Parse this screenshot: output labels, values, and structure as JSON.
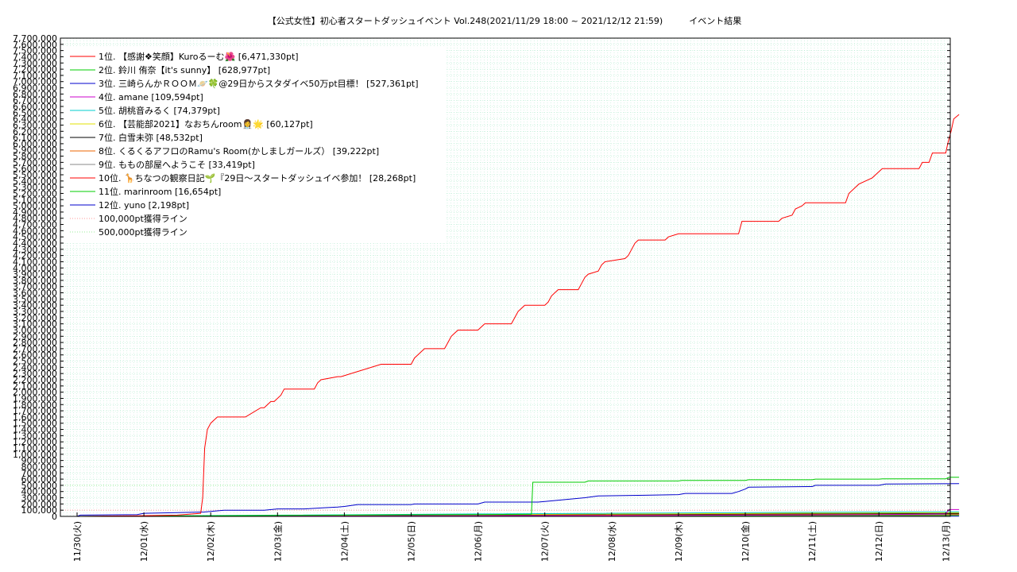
{
  "chart_data": {
    "type": "line",
    "title": "【公式女性】初心者スタートダッシュイベント Vol.248(2021/11/29 18:00 ~ 2021/12/12 21:59)　　　イベント結果",
    "xlabel": "",
    "ylabel": "",
    "ylim": [
      0,
      7700000
    ],
    "y_ticks": [
      "0",
      "100,000",
      "200,000",
      "300,000",
      "400,000",
      "500,000",
      "600,000",
      "700,000",
      "800,000",
      "900,000",
      "1,000,000",
      "1,100,000",
      "1,200,000",
      "1,300,000",
      "1,400,000",
      "1,500,000",
      "1,600,000",
      "1,700,000",
      "1,800,000",
      "1,900,000",
      "2,000,000",
      "2,100,000",
      "2,200,000",
      "2,300,000",
      "2,400,000",
      "2,500,000",
      "2,600,000",
      "2,700,000",
      "2,800,000",
      "2,900,000",
      "3,000,000",
      "3,100,000",
      "3,200,000",
      "3,300,000",
      "3,400,000",
      "3,500,000",
      "3,600,000",
      "3,700,000",
      "3,800,000",
      "3,900,000",
      "4,000,000",
      "4,100,000",
      "4,200,000",
      "4,300,000",
      "4,400,000",
      "4,500,000",
      "4,600,000",
      "4,700,000",
      "4,800,000",
      "4,900,000",
      "5,000,000",
      "5,100,000",
      "5,200,000",
      "5,300,000",
      "5,400,000",
      "5,500,000",
      "5,600,000",
      "5,700,000",
      "5,800,000",
      "5,900,000",
      "6,000,000",
      "6,100,000",
      "6,200,000",
      "6,300,000",
      "6,400,000",
      "6,500,000",
      "6,600,000",
      "6,700,000",
      "6,800,000",
      "6,900,000",
      "7,000,000",
      "7,100,000",
      "7,200,000",
      "7,300,000",
      "7,400,000",
      "7,500,000",
      "7,600,000",
      "7,700,000"
    ],
    "x_labels": [
      "11/30(火)",
      "12/01(水)",
      "12/02(木)",
      "12/03(金)",
      "12/04(土)",
      "12/05(日)",
      "12/06(月)",
      "12/07(火)",
      "12/08(水)",
      "12/09(木)",
      "12/10(金)",
      "12/11(土)",
      "12/12(日)",
      "12/13(月)"
    ],
    "xlim": [
      0,
      13
    ],
    "grid": true,
    "legend_position": "top-left",
    "series": [
      {
        "name": "1位. 【感謝❖笑顔】Kuroるーむ🌺 [6,471,330pt]",
        "color": "#ff0000",
        "x": [
          0,
          0.9,
          1.5,
          1.85,
          1.88,
          1.91,
          1.95,
          2.0,
          2.05,
          2.1,
          2.5,
          2.52,
          2.75,
          2.8,
          2.9,
          2.95,
          3.05,
          3.1,
          3.5,
          3.55,
          3.6,
          3.65,
          3.9,
          3.95,
          4.55,
          4.6,
          4.7,
          4.75,
          5.0,
          5.05,
          5.1,
          5.15,
          5.2,
          5.5,
          5.55,
          5.6,
          5.65,
          5.7,
          6.0,
          6.05,
          6.1,
          6.15,
          6.2,
          6.5,
          6.55,
          6.6,
          6.65,
          6.7,
          7.0,
          7.05,
          7.1,
          7.15,
          7.2,
          7.5,
          7.55,
          7.6,
          7.65,
          7.8,
          7.85,
          7.9,
          8.2,
          8.25,
          8.3,
          8.35,
          8.4,
          8.8,
          8.85,
          9.0,
          9.9,
          9.95,
          10.5,
          10.55,
          10.7,
          10.75,
          10.85,
          10.9,
          11.5,
          11.55,
          11.65,
          11.7,
          11.9,
          11.95,
          12.0,
          12.05,
          12.6,
          12.65,
          12.75,
          12.8,
          13.0,
          13.03,
          13.08,
          13.12,
          13.2
        ],
        "y": [
          0,
          10000,
          20000,
          50000,
          300000,
          1100000,
          1400000,
          1500000,
          1550000,
          1600000,
          1600000,
          1600000,
          1750000,
          1750000,
          1850000,
          1850000,
          1950000,
          2050000,
          2050000,
          2050000,
          2150000,
          2200000,
          2250000,
          2250000,
          2450000,
          2450000,
          2450000,
          2450000,
          2450000,
          2550000,
          2600000,
          2650000,
          2700000,
          2700000,
          2800000,
          2900000,
          2950000,
          3000000,
          3000000,
          3050000,
          3100000,
          3100000,
          3100000,
          3100000,
          3200000,
          3300000,
          3350000,
          3400000,
          3400000,
          3450000,
          3550000,
          3600000,
          3650000,
          3650000,
          3750000,
          3850000,
          3900000,
          3950000,
          4050000,
          4100000,
          4150000,
          4200000,
          4300000,
          4400000,
          4450000,
          4450000,
          4500000,
          4550000,
          4550000,
          4750000,
          4750000,
          4800000,
          4850000,
          4950000,
          5000000,
          5050000,
          5050000,
          5200000,
          5300000,
          5350000,
          5450000,
          5500000,
          5550000,
          5600000,
          5600000,
          5700000,
          5700000,
          5850000,
          5850000,
          6000000,
          6200000,
          6400000,
          6471330
        ]
      },
      {
        "name": "2位. 鈴川 侑奈【it's sunny】 [628,977pt]",
        "color": "#00cc00",
        "x": [
          0,
          1.0,
          2.0,
          3.0,
          4.0,
          5.0,
          6.0,
          6.8,
          6.82,
          7.6,
          7.65,
          9.0,
          9.05,
          10.0,
          10.05,
          11.0,
          11.05,
          12.0,
          12.05,
          13.0,
          13.05,
          13.2
        ],
        "y": [
          0,
          5000,
          10000,
          15000,
          20000,
          25000,
          30000,
          35000,
          550000,
          550000,
          570000,
          570000,
          580000,
          580000,
          590000,
          590000,
          600000,
          600000,
          605000,
          605000,
          628977,
          628977
        ]
      },
      {
        "name": "3位. 三崎らんかＲＯＯＭ🪐🍀@29日からスタダイベ50万pt目標！ [527,361pt]",
        "color": "#0000cc",
        "x": [
          0,
          0.05,
          0.9,
          1.0,
          1.5,
          1.9,
          2.0,
          2.2,
          2.8,
          3.0,
          3.4,
          3.7,
          3.9,
          4.0,
          4.2,
          5.0,
          5.05,
          6.0,
          6.1,
          6.9,
          7.0,
          7.3,
          7.6,
          7.8,
          8.5,
          9.0,
          9.1,
          9.8,
          9.9,
          10.0,
          10.05,
          11.0,
          11.05,
          12.0,
          12.1,
          13.2
        ],
        "y": [
          0,
          20000,
          30000,
          50000,
          60000,
          70000,
          80000,
          100000,
          100000,
          120000,
          120000,
          140000,
          150000,
          160000,
          190000,
          190000,
          200000,
          200000,
          230000,
          230000,
          240000,
          270000,
          300000,
          330000,
          340000,
          350000,
          370000,
          370000,
          400000,
          440000,
          470000,
          480000,
          500000,
          500000,
          520000,
          527361
        ]
      },
      {
        "name": "4位. amane [109,594pt]",
        "color": "#cc00cc",
        "x": [
          0,
          9.0,
          12.0,
          13.0,
          13.05,
          13.2
        ],
        "y": [
          0,
          15000,
          30000,
          40000,
          109594,
          109594
        ]
      },
      {
        "name": "5位. 胡桃音みるく [74,379pt]",
        "color": "#00cccc",
        "x": [
          0,
          6.0,
          12.0,
          13.2
        ],
        "y": [
          0,
          40000,
          70000,
          74379
        ]
      },
      {
        "name": "6位. 【芸能部2021】なおちんroom👩‍⚕️🌟 [60,127pt]",
        "color": "#e0e000",
        "x": [
          0,
          6.0,
          12.0,
          13.2
        ],
        "y": [
          0,
          30000,
          55000,
          60127
        ]
      },
      {
        "name": "7位. 白雪未弥 [48,532pt]",
        "color": "#000000",
        "x": [
          0,
          6.0,
          12.0,
          13.2
        ],
        "y": [
          0,
          25000,
          45000,
          48532
        ]
      },
      {
        "name": "8位. くるくるアフロのRamu's Room(かしましガールズ） [39,222pt]",
        "color": "#ee6600",
        "x": [
          0,
          6.0,
          12.0,
          13.2
        ],
        "y": [
          0,
          20000,
          35000,
          39222
        ]
      },
      {
        "name": "9位. ももの部屋へようこそ [33,419pt]",
        "color": "#888888",
        "x": [
          0,
          6.0,
          12.0,
          13.2
        ],
        "y": [
          0,
          15000,
          30000,
          33419
        ]
      },
      {
        "name": "10位. 🦒ちなつの観察日記🌱『29日〜スタートダッシュイベ参加！ [28,268pt]",
        "color": "#ff0000",
        "x": [
          0,
          6.0,
          12.0,
          13.2
        ],
        "y": [
          0,
          12000,
          25000,
          28268
        ]
      },
      {
        "name": "11位. marinroom [16,654pt]",
        "color": "#00cc00",
        "x": [
          0,
          6.0,
          12.0,
          13.2
        ],
        "y": [
          0,
          8000,
          15000,
          16654
        ]
      },
      {
        "name": "12位. yuno [2,198pt]",
        "color": "#0000cc",
        "x": [
          0,
          6.0,
          13.2
        ],
        "y": [
          0,
          1500,
          2198
        ]
      }
    ],
    "reference_lines": [
      {
        "name": "100,000pt獲得ライン",
        "value": 100000,
        "color": "#ff9999"
      },
      {
        "name": "500,000pt獲得ライン",
        "value": 500000,
        "color": "#99ee99"
      }
    ]
  }
}
